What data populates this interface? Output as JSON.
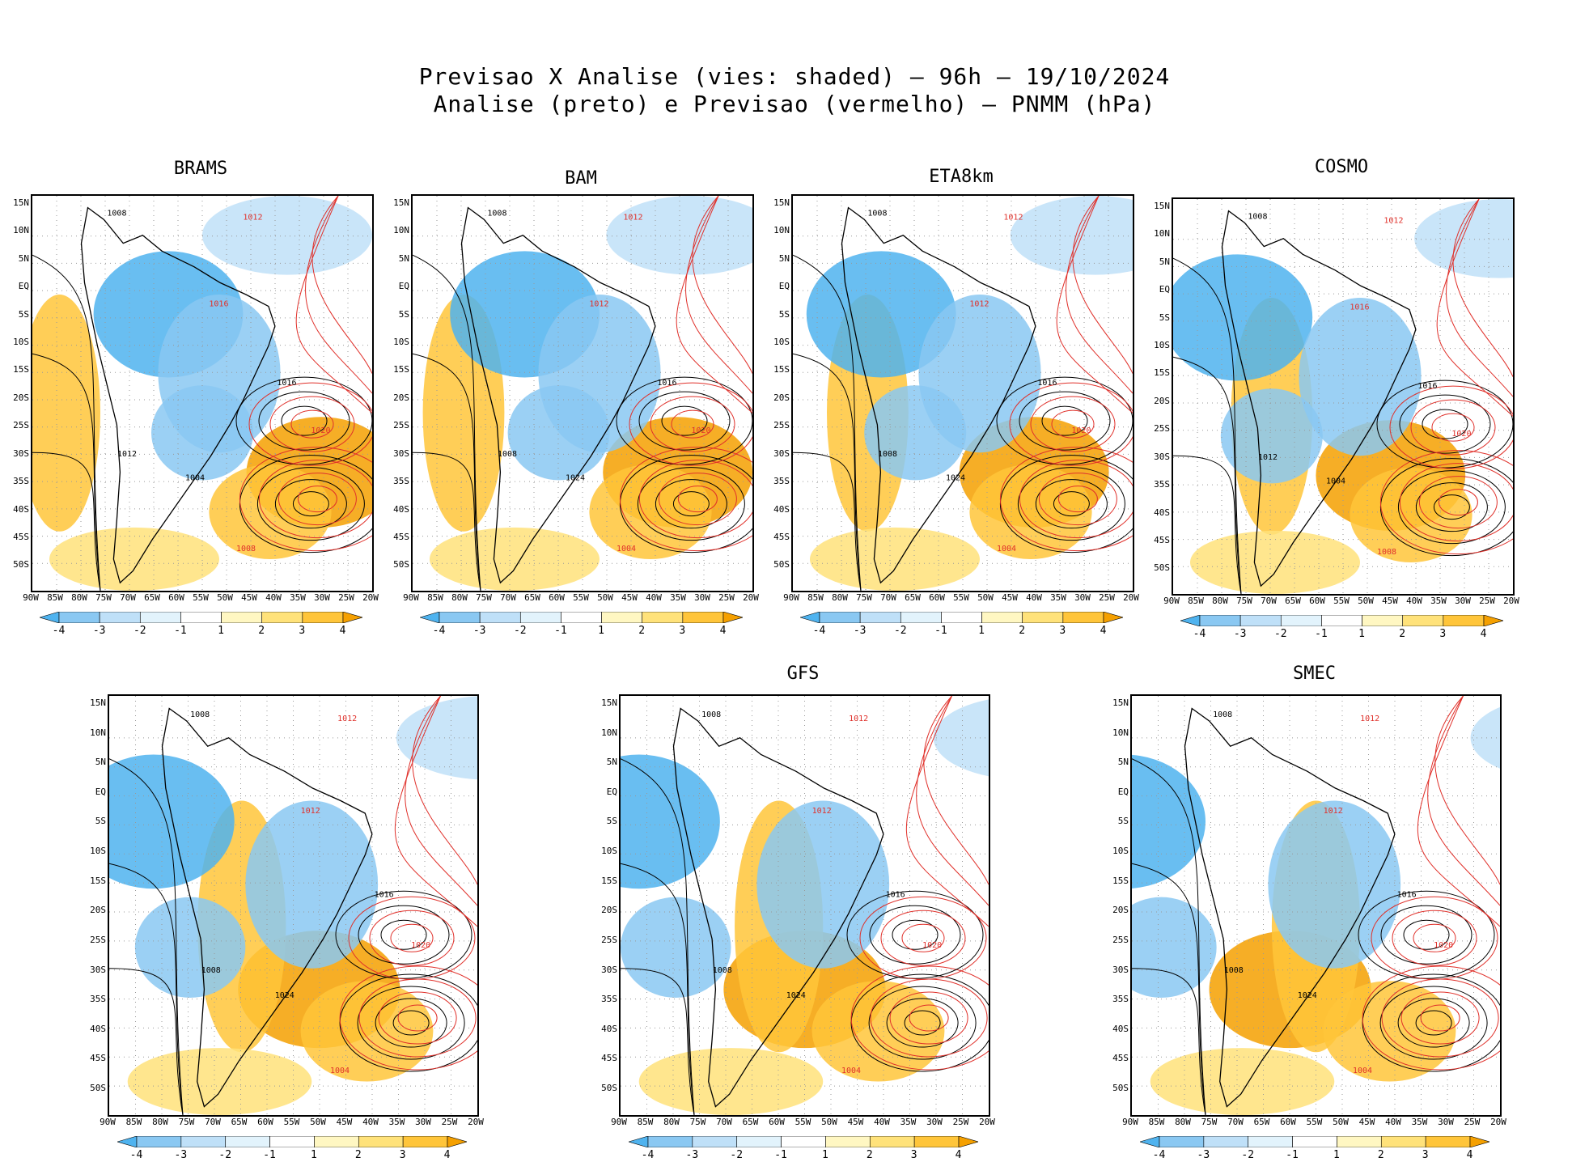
{
  "header": {
    "line1": "Previsao X Analise (vies: shaded) — 96h — 19/10/2024",
    "line2": "Analise (preto) e Previsao (vermelho) — PNMM (hPa)"
  },
  "axes": {
    "lat_labels": [
      "15N",
      "10N",
      "5N",
      "EQ",
      "5S",
      "10S",
      "15S",
      "20S",
      "25S",
      "30S",
      "35S",
      "40S",
      "45S",
      "50S"
    ],
    "lon_labels": [
      "90W",
      "85W",
      "80W",
      "75W",
      "70W",
      "65W",
      "60W",
      "55W",
      "50W",
      "45W",
      "40W",
      "35W",
      "30W",
      "25W",
      "20W"
    ]
  },
  "colorbar": {
    "labels": [
      "-4",
      "-3",
      "-2",
      "-1",
      "1",
      "2",
      "3",
      "4"
    ],
    "colors": [
      "#4fb3ef",
      "#8ac8f2",
      "#bfe0f8",
      "#e2f3fc",
      "#ffffff",
      "#fff7c2",
      "#ffe27a",
      "#ffc53a",
      "#f5a000"
    ]
  },
  "colors": {
    "analysis_isobar": "#000000",
    "forecast_isobar": "#e0302a",
    "grid": "#999999"
  },
  "panels": [
    {
      "name": "BRAMS",
      "title": "BRAMS",
      "isobars": [
        "1008",
        "1012",
        "1016",
        "1020",
        "1004"
      ]
    },
    {
      "name": "BAM",
      "title": "BAM",
      "isobars": [
        "1008",
        "1012",
        "1016",
        "1020",
        "1024",
        "1004"
      ]
    },
    {
      "name": "ETA8km",
      "title": "ETA8km",
      "isobars": [
        "1008",
        "1012",
        "1016",
        "1020",
        "1024",
        "1004"
      ]
    },
    {
      "name": "COSMO",
      "title": "COSMO",
      "isobars": [
        "1008",
        "1012",
        "1016",
        "1020",
        "1004"
      ]
    },
    {
      "name": "untitled",
      "title": "",
      "isobars": [
        "1008",
        "1012",
        "1016",
        "1020",
        "1024",
        "1004"
      ]
    },
    {
      "name": "GFS",
      "title": "GFS",
      "isobars": [
        "1008",
        "1012",
        "1016",
        "1020",
        "1024",
        "1004"
      ]
    },
    {
      "name": "SMEC",
      "title": "SMEC",
      "isobars": [
        "1008",
        "1012",
        "1016",
        "1020",
        "1024",
        "1004"
      ]
    }
  ]
}
